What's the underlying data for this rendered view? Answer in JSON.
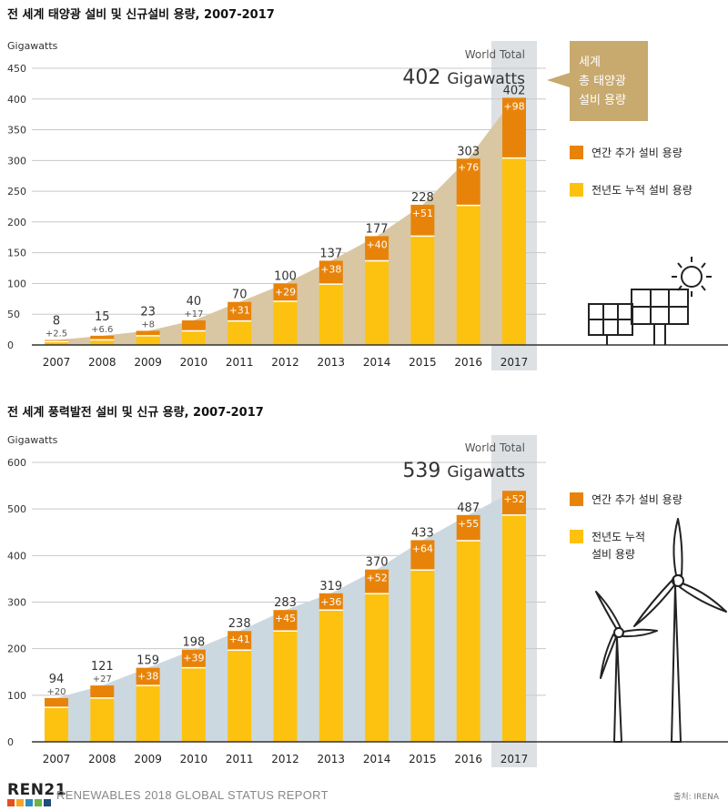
{
  "footer": {
    "logo": "REN21",
    "report": "RENEWABLES 2018 GLOBAL STATUS REPORT",
    "source": "출처: IRENA"
  },
  "colors": {
    "annual": "#E8830A",
    "cumulative": "#FDC20F",
    "solar_area": "#D9C7A3",
    "wind_area": "#CCD8E0",
    "highlight": "#DDE1E4",
    "callout": "#C8A96E"
  },
  "chart_data": [
    {
      "type": "bar",
      "title": "전 세계 태양광 설비 및 신규설비 용량, 2007-2017",
      "ylabel": "Gigawatts",
      "ylim": [
        0,
        450
      ],
      "yticks": [
        0,
        50,
        100,
        150,
        200,
        250,
        300,
        350,
        400,
        450
      ],
      "categories": [
        "2007",
        "2008",
        "2009",
        "2010",
        "2011",
        "2012",
        "2013",
        "2014",
        "2015",
        "2016",
        "2017"
      ],
      "series": [
        {
          "name": "전년도 누적 설비 용량",
          "values": [
            5.5,
            8.4,
            15,
            23,
            39,
            71,
            99,
            137,
            177,
            227,
            304
          ]
        },
        {
          "name": "연간 추가 설비 용량",
          "values": [
            2.5,
            6.6,
            8,
            17,
            31,
            29,
            38,
            40,
            51,
            76,
            98
          ]
        }
      ],
      "totals": [
        "8",
        "15",
        "23",
        "40",
        "70",
        "100",
        "137",
        "177",
        "228",
        "303",
        "402"
      ],
      "added_labels": [
        "+2.5",
        "+6.6",
        "+8",
        "+17",
        "+31",
        "+29",
        "+38",
        "+40",
        "+51",
        "+76",
        "+98"
      ],
      "world_total_label": "World Total",
      "world_total_value": "402",
      "world_total_unit": "Gigawatts",
      "callout_lines": [
        "세계",
        "총 태양광",
        "설비 용량"
      ],
      "legend": [
        "연간 추가 설비 용량",
        "전년도 누적 설비 용량"
      ]
    },
    {
      "type": "bar",
      "title": "전 세계 풍력발전 설비 및 신규 용량, 2007-2017",
      "ylabel": "Gigawatts",
      "ylim": [
        0,
        600
      ],
      "yticks": [
        0,
        100,
        200,
        300,
        400,
        500,
        600
      ],
      "categories": [
        "2007",
        "2008",
        "2009",
        "2010",
        "2011",
        "2012",
        "2013",
        "2014",
        "2015",
        "2016",
        "2017"
      ],
      "series": [
        {
          "name": "전년도 누적 설비 용량",
          "values": [
            74,
            94,
            121,
            159,
            197,
            238,
            283,
            318,
            369,
            432,
            487
          ]
        },
        {
          "name": "연간 추가 설비 용량",
          "values": [
            20,
            27,
            38,
            39,
            41,
            45,
            36,
            52,
            64,
            55,
            52
          ]
        }
      ],
      "totals": [
        "94",
        "121",
        "159",
        "198",
        "238",
        "283",
        "319",
        "370",
        "433",
        "487",
        ""
      ],
      "added_labels": [
        "+20",
        "+27",
        "+38",
        "+39",
        "+41",
        "+45",
        "+36",
        "+52",
        "+64",
        "+55",
        "+52"
      ],
      "world_total_label": "World Total",
      "world_total_value": "539",
      "world_total_unit": "Gigawatts",
      "legend": [
        "연간 추가 설비 용량",
        "전년도 누적 설비 용량"
      ],
      "legend_cum_lines": [
        "전년도 누적",
        "설비 용량"
      ]
    }
  ]
}
